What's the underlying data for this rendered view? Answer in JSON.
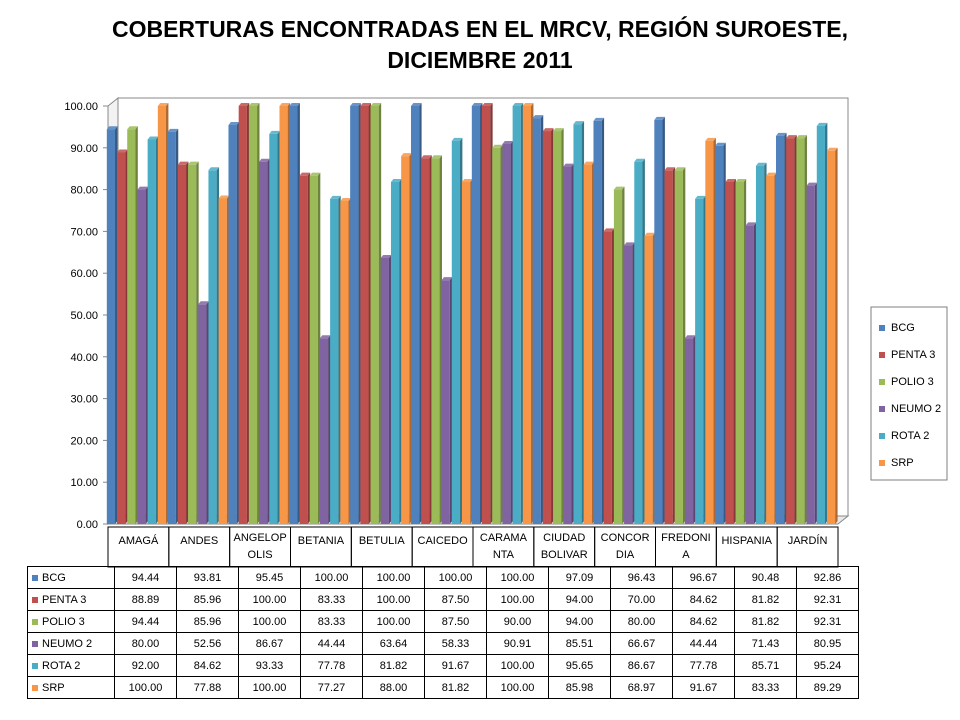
{
  "chart_data": {
    "type": "bar",
    "title": "COBERTURAS ENCONTRADAS EN EL MRCV, REGIÓN SUROESTE, DICIEMBRE 2011",
    "categories": [
      "AMAGÁ",
      "ANDES",
      "ANGELOP OLIS",
      "BETANIA",
      "BETULIA",
      "CAICEDO",
      "CARAMA NTA",
      "CIUDAD BOLIVAR",
      "CONCOR DIA",
      "FREDONI A",
      "HISPANIA",
      "JARDÍN"
    ],
    "category_display": [
      [
        "AMAGÁ"
      ],
      [
        "ANDES"
      ],
      [
        "ANGELOP",
        "OLIS"
      ],
      [
        "BETANIA"
      ],
      [
        "BETULIA"
      ],
      [
        "CAICEDO"
      ],
      [
        "CARAMA",
        "NTA"
      ],
      [
        "CIUDAD",
        "BOLIVAR"
      ],
      [
        "CONCOR",
        "DIA"
      ],
      [
        "FREDONI",
        "A"
      ],
      [
        "HISPANIA"
      ],
      [
        "JARDÍN"
      ]
    ],
    "ylim": [
      0,
      100
    ],
    "y_ticks": [
      "0.00",
      "10.00",
      "20.00",
      "30.00",
      "40.00",
      "50.00",
      "60.00",
      "70.00",
      "80.00",
      "90.00",
      "100.00"
    ],
    "grid": false,
    "legend_position": "right",
    "series": [
      {
        "name": "BCG",
        "color": "#4F81BD",
        "values": [
          94.44,
          93.81,
          95.45,
          100.0,
          100.0,
          100.0,
          100.0,
          97.09,
          96.43,
          96.67,
          90.48,
          92.86
        ],
        "labels": [
          "94.44",
          "93.81",
          "95.45",
          "100.00",
          "100.00",
          "100.00",
          "100.00",
          "97.09",
          "96.43",
          "96.67",
          "90.48",
          "92.86"
        ]
      },
      {
        "name": "PENTA 3",
        "color": "#C0504D",
        "values": [
          88.89,
          85.96,
          100.0,
          83.33,
          100.0,
          87.5,
          100.0,
          94.0,
          70.0,
          84.62,
          81.82,
          92.31
        ],
        "labels": [
          "88.89",
          "85.96",
          "100.00",
          "83.33",
          "100.00",
          "87.50",
          "100.00",
          "94.00",
          "70.00",
          "84.62",
          "81.82",
          "92.31"
        ]
      },
      {
        "name": "POLIO 3",
        "color": "#9BBB59",
        "values": [
          94.44,
          85.96,
          100.0,
          83.33,
          100.0,
          87.5,
          90.0,
          94.0,
          80.0,
          84.62,
          81.82,
          92.31
        ],
        "labels": [
          "94.44",
          "85.96",
          "100.00",
          "83.33",
          "100.00",
          "87.50",
          "90.00",
          "94.00",
          "80.00",
          "84.62",
          "81.82",
          "92.31"
        ]
      },
      {
        "name": "NEUMO 2",
        "color": "#8064A2",
        "values": [
          80.0,
          52.56,
          86.67,
          44.44,
          63.64,
          58.33,
          90.91,
          85.51,
          66.67,
          44.44,
          71.43,
          80.95
        ],
        "labels": [
          "80.00",
          "52.56",
          "86.67",
          "44.44",
          "63.64",
          "58.33",
          "90.91",
          "85.51",
          "66.67",
          "44.44",
          "71.43",
          "80.95"
        ]
      },
      {
        "name": "ROTA 2",
        "color": "#4BACC6",
        "values": [
          92.0,
          84.62,
          93.33,
          77.78,
          81.82,
          91.67,
          100.0,
          95.65,
          86.67,
          77.78,
          85.71,
          95.24
        ],
        "labels": [
          "92.00",
          "84.62",
          "93.33",
          "77.78",
          "81.82",
          "91.67",
          "100.00",
          "95.65",
          "86.67",
          "77.78",
          "85.71",
          "95.24"
        ]
      },
      {
        "name": "SRP",
        "color": "#F79646",
        "values": [
          100.0,
          77.88,
          100.0,
          77.27,
          88.0,
          81.82,
          100.0,
          85.98,
          68.97,
          91.67,
          83.33,
          89.29
        ],
        "labels": [
          "100.00",
          "77.88",
          "100.00",
          "77.27",
          "88.00",
          "81.82",
          "100.00",
          "85.98",
          "68.97",
          "91.67",
          "83.33",
          "89.29"
        ]
      }
    ]
  }
}
